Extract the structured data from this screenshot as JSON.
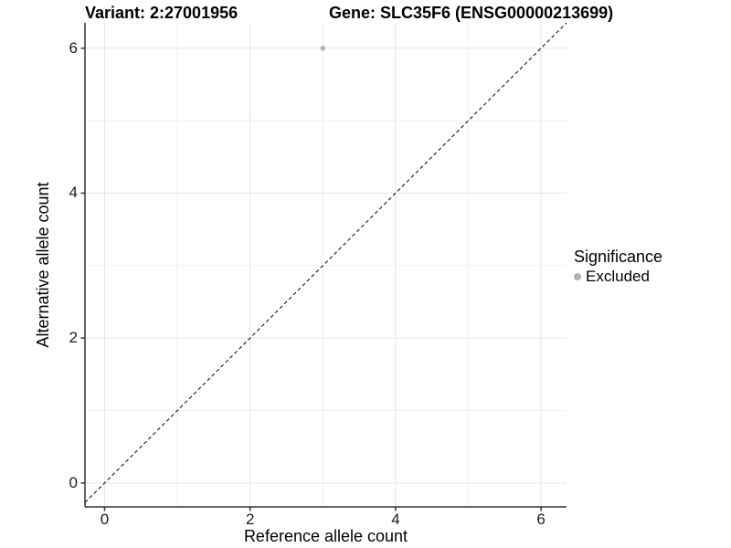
{
  "header": {
    "variant_title": "Variant: 2:27001956",
    "gene_title": "Gene: SLC35F6 (ENSG00000213699)"
  },
  "chart_data": {
    "type": "scatter",
    "xlabel": "Reference allele count",
    "ylabel": "Alternative allele count",
    "xlim": [
      -0.27,
      6.35
    ],
    "ylim": [
      -0.33,
      6.35
    ],
    "x_major_ticks": [
      0,
      2,
      4,
      6
    ],
    "y_major_ticks": [
      0,
      2,
      4,
      6
    ],
    "x_minor_ticks": [
      1,
      3,
      5
    ],
    "y_minor_ticks": [
      1,
      3,
      5
    ],
    "grid": true,
    "series": [
      {
        "name": "Excluded",
        "color": "#b3b3b3",
        "point_radius": 2.8,
        "points": [
          {
            "x": 3,
            "y": 6
          }
        ]
      }
    ],
    "reference_line": {
      "type": "identity",
      "style": "dashed",
      "color": "#000000",
      "from": [
        -0.27,
        -0.27
      ],
      "to": [
        6.35,
        6.35
      ]
    },
    "legend": {
      "title": "Significance",
      "position": "right",
      "entries": [
        {
          "label": "Excluded",
          "color": "#b3b3b3"
        }
      ]
    }
  },
  "style": {
    "major_grid_color": "#e4e4e4",
    "minor_grid_color": "#f0f0f0",
    "axis_line_color": "#333333",
    "tick_color": "#333333",
    "background": "#ffffff"
  }
}
